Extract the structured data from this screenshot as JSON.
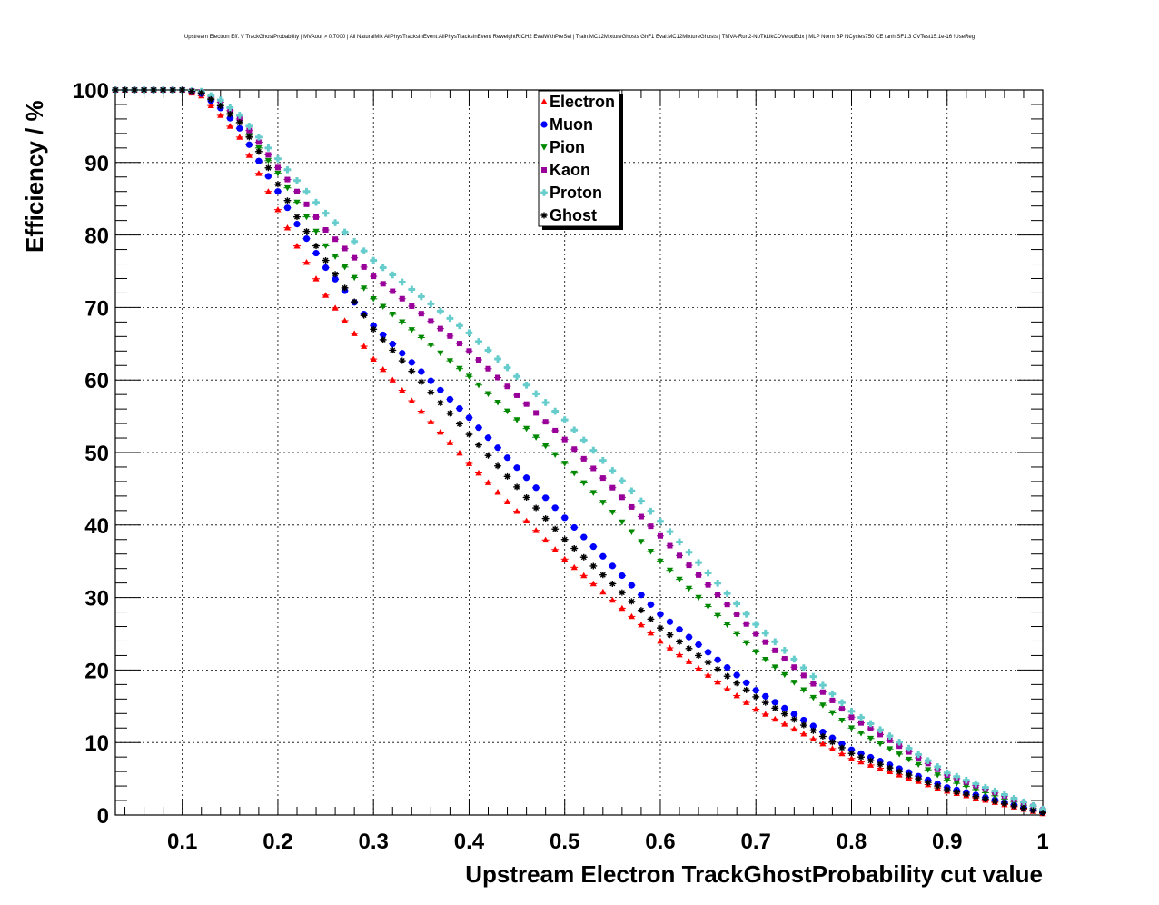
{
  "chart_data": {
    "type": "scatter",
    "title": "Upstream Electron Eff. V TrackGhostProbability | MVAout > 0.7000 | All NaturalMix AllPhysTracksInEvent:AllPhysTracksInEvent ReweightRICH2 EvalWithPreSel | Train:MC12MixtureGhosts GhF1 Eval:MC12MixtureGhosts | TMVA-Run2-NoTkLikCDVelodEdx | MLP Norm BP NCycles750 CE tanh SF1.3 CVTest15:1e-16 !UseReg",
    "xlabel": "Upstream Electron TrackGhostProbability cut value",
    "ylabel": "Efficiency / %",
    "xlim": [
      0.03,
      1.0
    ],
    "ylim": [
      0,
      100
    ],
    "x_ticks": [
      "0.1",
      "0.2",
      "0.3",
      "0.4",
      "0.5",
      "0.6",
      "0.7",
      "0.8",
      "0.9",
      "1"
    ],
    "y_ticks": [
      "0",
      "10",
      "20",
      "30",
      "40",
      "50",
      "60",
      "70",
      "80",
      "90",
      "100"
    ],
    "grid": true,
    "legend_position": "top-center",
    "x_start": 0.03,
    "x_step": 0.01,
    "series": [
      {
        "name": "Electron",
        "color": "#ff0000",
        "marker": "triangle-up",
        "knots": [
          [
            0.03,
            100
          ],
          [
            0.1,
            100
          ],
          [
            0.12,
            99.2
          ],
          [
            0.14,
            96.5
          ],
          [
            0.16,
            93.5
          ],
          [
            0.18,
            88.5
          ],
          [
            0.2,
            83.5
          ],
          [
            0.22,
            78.5
          ],
          [
            0.25,
            71.7
          ],
          [
            0.3,
            62.9
          ],
          [
            0.4,
            48.5
          ],
          [
            0.5,
            35.3
          ],
          [
            0.6,
            24.0
          ],
          [
            0.7,
            14.6
          ],
          [
            0.8,
            7.8
          ],
          [
            0.9,
            3.3
          ],
          [
            1.0,
            0.2
          ]
        ]
      },
      {
        "name": "Muon",
        "color": "#0000ff",
        "marker": "circle",
        "knots": [
          [
            0.03,
            100
          ],
          [
            0.1,
            100
          ],
          [
            0.12,
            99.5
          ],
          [
            0.14,
            97.5
          ],
          [
            0.16,
            94.7
          ],
          [
            0.18,
            90.2
          ],
          [
            0.2,
            86.0
          ],
          [
            0.22,
            81.5
          ],
          [
            0.25,
            75.5
          ],
          [
            0.3,
            67.5
          ],
          [
            0.4,
            54.8
          ],
          [
            0.5,
            41.0
          ],
          [
            0.6,
            27.7
          ],
          [
            0.7,
            17.2
          ],
          [
            0.8,
            9.0
          ],
          [
            0.9,
            3.8
          ],
          [
            1.0,
            0.4
          ]
        ]
      },
      {
        "name": "Pion",
        "color": "#008800",
        "marker": "triangle-down",
        "knots": [
          [
            0.03,
            100
          ],
          [
            0.1,
            100
          ],
          [
            0.12,
            99.6
          ],
          [
            0.14,
            98.0
          ],
          [
            0.16,
            95.5
          ],
          [
            0.18,
            92.0
          ],
          [
            0.2,
            88.5
          ],
          [
            0.22,
            84.5
          ],
          [
            0.25,
            78.5
          ],
          [
            0.3,
            71.2
          ],
          [
            0.4,
            60.5
          ],
          [
            0.5,
            48.5
          ],
          [
            0.6,
            35.0
          ],
          [
            0.7,
            22.5
          ],
          [
            0.8,
            12.0
          ],
          [
            0.9,
            4.8
          ],
          [
            1.0,
            0.5
          ]
        ]
      },
      {
        "name": "Kaon",
        "color": "#990099",
        "marker": "square",
        "knots": [
          [
            0.03,
            100
          ],
          [
            0.1,
            100
          ],
          [
            0.12,
            99.7
          ],
          [
            0.14,
            98.3
          ],
          [
            0.16,
            96.0
          ],
          [
            0.18,
            92.8
          ],
          [
            0.2,
            89.3
          ],
          [
            0.22,
            86.0
          ],
          [
            0.25,
            80.7
          ],
          [
            0.3,
            74.3
          ],
          [
            0.4,
            64.0
          ],
          [
            0.5,
            51.8
          ],
          [
            0.6,
            38.5
          ],
          [
            0.7,
            25.0
          ],
          [
            0.8,
            13.5
          ],
          [
            0.9,
            5.5
          ],
          [
            1.0,
            0.7
          ]
        ]
      },
      {
        "name": "Proton",
        "color": "#66cccc",
        "marker": "cross",
        "knots": [
          [
            0.03,
            100
          ],
          [
            0.1,
            100
          ],
          [
            0.12,
            99.8
          ],
          [
            0.14,
            98.6
          ],
          [
            0.16,
            96.5
          ],
          [
            0.18,
            93.5
          ],
          [
            0.2,
            90.5
          ],
          [
            0.22,
            87.5
          ],
          [
            0.25,
            83.0
          ],
          [
            0.3,
            76.5
          ],
          [
            0.4,
            66.5
          ],
          [
            0.5,
            54.5
          ],
          [
            0.6,
            40.5
          ],
          [
            0.7,
            26.3
          ],
          [
            0.8,
            14.3
          ],
          [
            0.9,
            5.8
          ],
          [
            1.0,
            0.8
          ]
        ]
      },
      {
        "name": "Ghost",
        "color": "#000000",
        "marker": "star",
        "knots": [
          [
            0.03,
            100
          ],
          [
            0.1,
            100
          ],
          [
            0.12,
            99.6
          ],
          [
            0.14,
            97.8
          ],
          [
            0.16,
            95.5
          ],
          [
            0.18,
            91.5
          ],
          [
            0.2,
            87.0
          ],
          [
            0.22,
            82.5
          ],
          [
            0.25,
            76.5
          ],
          [
            0.3,
            67.0
          ],
          [
            0.4,
            52.5
          ],
          [
            0.5,
            38.0
          ],
          [
            0.6,
            25.8
          ],
          [
            0.7,
            16.3
          ],
          [
            0.8,
            8.5
          ],
          [
            0.9,
            3.5
          ],
          [
            1.0,
            0.3
          ]
        ]
      }
    ]
  }
}
